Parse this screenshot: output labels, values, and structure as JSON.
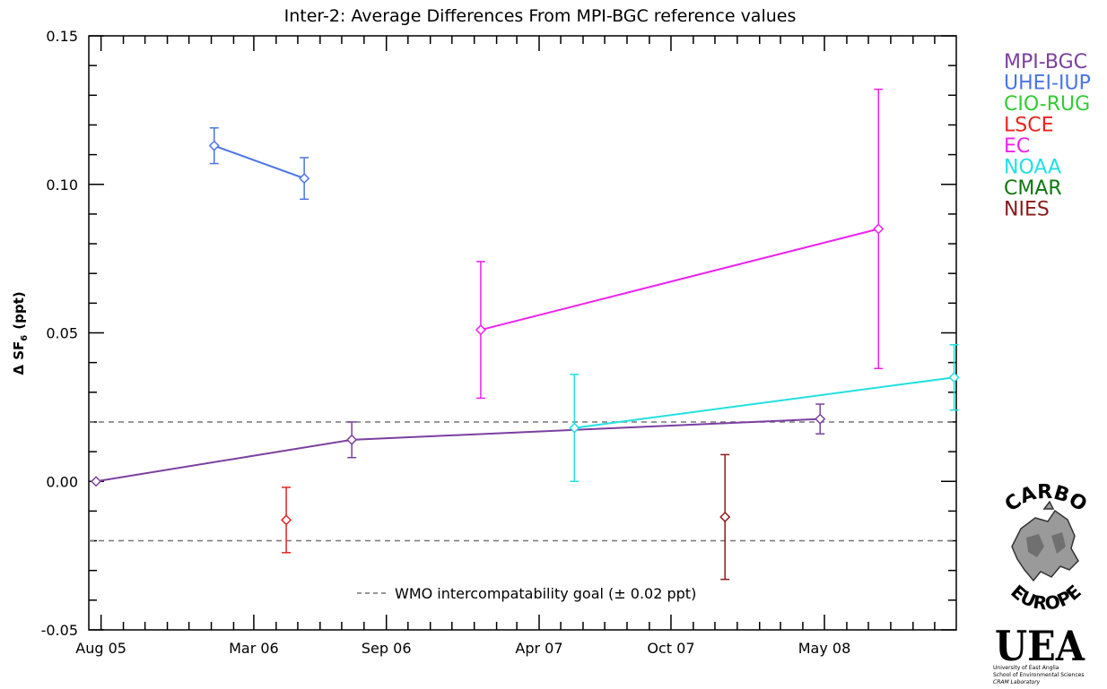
{
  "chart_data": {
    "type": "line",
    "title": "Inter-2: Average Differences From MPI-BGC reference values",
    "ylabel_main": "Δ SF",
    "ylabel_sub": "6",
    "ylabel_unit": "(ppt)",
    "ylim": [
      -0.05,
      0.15
    ],
    "yticks": [
      -0.05,
      0.0,
      0.05,
      0.1,
      0.15
    ],
    "ytick_labels": [
      "-0.05",
      "0.00",
      "0.05",
      "0.10",
      "0.15"
    ],
    "xlim": [
      "2005-07-15",
      "2008-10-31"
    ],
    "xticks": [
      "2005-08-01",
      "2006-03-01",
      "2006-09-01",
      "2007-04-01",
      "2007-10-01",
      "2008-05-01"
    ],
    "xtick_labels": [
      "Aug 05",
      "Mar 06",
      "Sep 06",
      "Apr 07",
      "Oct 07",
      "May 08"
    ],
    "grid": false,
    "legend_position": "right outside",
    "reference_lines": [
      {
        "y": 0.02,
        "style": "dashed",
        "color": "#777777"
      },
      {
        "y": -0.02,
        "style": "dashed",
        "color": "#777777"
      }
    ],
    "annotation": "WMO intercompatability goal (± 0.02 ppt)",
    "series": [
      {
        "name": "MPI-BGC",
        "color": "#7b3fa0",
        "points": [
          {
            "x": "2005-07-25",
            "y": 0.0,
            "err": 0.0
          },
          {
            "x": "2006-07-15",
            "y": 0.014,
            "err": 0.006
          },
          {
            "x": "2008-04-25",
            "y": 0.021,
            "err": 0.005
          }
        ]
      },
      {
        "name": "UHEI-IUP",
        "color": "#4a74e8",
        "points": [
          {
            "x": "2006-01-05",
            "y": 0.113,
            "err": 0.006
          },
          {
            "x": "2006-05-10",
            "y": 0.102,
            "err": 0.007
          }
        ]
      },
      {
        "name": "CIO-RUG",
        "color": "#33cc33",
        "points": []
      },
      {
        "name": "LSCE",
        "color": "#e8231f",
        "points": [
          {
            "x": "2006-04-15",
            "y": -0.013,
            "err": 0.011
          }
        ]
      },
      {
        "name": "EC",
        "color": "#ee22ee",
        "points": [
          {
            "x": "2007-01-10",
            "y": 0.051,
            "err": 0.023
          },
          {
            "x": "2008-07-15",
            "y": 0.085,
            "err": 0.047
          }
        ]
      },
      {
        "name": "NOAA",
        "color": "#22e0e0",
        "points": [
          {
            "x": "2007-05-20",
            "y": 0.018,
            "err": 0.018
          },
          {
            "x": "2008-10-28",
            "y": 0.035,
            "err": 0.011
          }
        ]
      },
      {
        "name": "CMAR",
        "color": "#117711",
        "points": []
      },
      {
        "name": "NIES",
        "color": "#8b1a1a",
        "points": [
          {
            "x": "2007-12-15",
            "y": -0.012,
            "err": 0.021
          }
        ]
      }
    ]
  },
  "logos": {
    "carbo_europe_text": [
      "CARBO",
      "EUROPE"
    ],
    "uea_letters": "UEA",
    "uea_line1": "University of East Anglia",
    "uea_line2": "School of Environmental Sciences",
    "uea_line3": "CRAM Laboratory"
  }
}
